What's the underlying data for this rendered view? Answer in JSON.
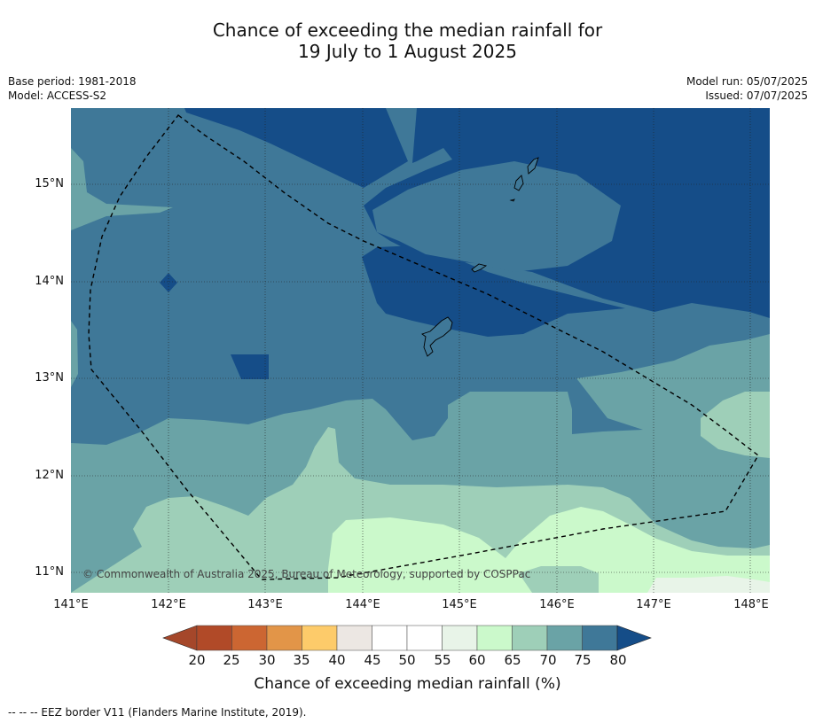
{
  "title": {
    "line1": "Chance of exceeding the median rainfall for",
    "line2": "19 July to 1 August 2025"
  },
  "meta": {
    "base_period": "Base period: 1981-2018",
    "model": "Model: ACCESS-S2",
    "model_run": "Model run: 05/07/2025",
    "issued": "Issued: 07/07/2025"
  },
  "map": {
    "lat_ticks": [
      "15°N",
      "14°N",
      "13°N",
      "12°N",
      "11°N"
    ],
    "lon_ticks": [
      "141°E",
      "142°E",
      "143°E",
      "144°E",
      "145°E",
      "146°E",
      "147°E",
      "148°E"
    ],
    "copyright": "© Commonwealth of Australia 2025, Bureau of Meteorology, supported by COSPPac",
    "colors": {
      "c80": "#154d88",
      "c75": "#3f7898",
      "c70": "#6aa3a6",
      "c65": "#9ecfb8",
      "c60": "#cbf9cb",
      "c55": "#e8f4e8"
    }
  },
  "colorbar": {
    "labels": [
      "20",
      "25",
      "30",
      "35",
      "40",
      "45",
      "50",
      "55",
      "60",
      "65",
      "70",
      "75",
      "80"
    ],
    "colors": [
      "#a5472a",
      "#b14a28",
      "#cc6632",
      "#e29548",
      "#fdcb6a",
      "#ece7e3",
      "#ffffff",
      "#ffffff",
      "#e8f4e8",
      "#cbf9cb",
      "#9ecfb8",
      "#6aa3a6",
      "#3f7898",
      "#154d88"
    ],
    "title": "Chance of exceeding median rainfall (%)"
  },
  "footer": "-- -- -- EEZ border V11 (Flanders Marine Institute, 2019)."
}
